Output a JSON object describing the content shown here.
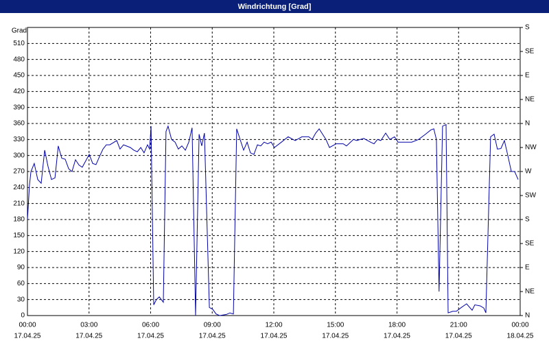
{
  "chart_data": {
    "type": "line",
    "title": "Windrichtung [Grad]",
    "ylabel": "Grad",
    "xlim": [
      0,
      24
    ],
    "xticks": [
      {
        "value": 0,
        "label": "00:00"
      },
      {
        "value": 3,
        "label": "03:00"
      },
      {
        "value": 6,
        "label": "06:00"
      },
      {
        "value": 9,
        "label": "09:00"
      },
      {
        "value": 12,
        "label": "12:00"
      },
      {
        "value": 15,
        "label": "15:00"
      },
      {
        "value": 18,
        "label": "18:00"
      },
      {
        "value": 21,
        "label": "21:00"
      },
      {
        "value": 24,
        "label": "00:00"
      }
    ],
    "xtick_dates": [
      "17.04.25",
      "17.04.25",
      "17.04.25",
      "17.04.25",
      "17.04.25",
      "17.04.25",
      "17.04.25",
      "17.04.25",
      "18.04.25"
    ],
    "ylim": [
      0,
      540
    ],
    "yticks": [
      0,
      30,
      60,
      90,
      120,
      150,
      180,
      210,
      240,
      270,
      300,
      330,
      360,
      390,
      420,
      450,
      480,
      510
    ],
    "y2lim": [
      0,
      540
    ],
    "y2ticks": [
      {
        "value": 0,
        "label": "N"
      },
      {
        "value": 45,
        "label": "NE"
      },
      {
        "value": 90,
        "label": "E"
      },
      {
        "value": 135,
        "label": "SE"
      },
      {
        "value": 180,
        "label": "S"
      },
      {
        "value": 225,
        "label": "SW"
      },
      {
        "value": 270,
        "label": "W"
      },
      {
        "value": 315,
        "label": "NW"
      },
      {
        "value": 360,
        "label": "N"
      },
      {
        "value": 405,
        "label": "NE"
      },
      {
        "value": 450,
        "label": "E"
      },
      {
        "value": 495,
        "label": "SE"
      },
      {
        "value": 540,
        "label": "S"
      }
    ],
    "grid": true,
    "color": "#0000a8",
    "x": [
      0,
      0.1,
      0.17,
      0.33,
      0.5,
      0.67,
      0.84,
      1,
      1.17,
      1.34,
      1.5,
      1.67,
      1.84,
      2.01,
      2.17,
      2.34,
      2.51,
      2.67,
      2.84,
      3.01,
      3.18,
      3.34,
      3.51,
      3.68,
      3.84,
      4.01,
      4.35,
      4.51,
      4.68,
      5.01,
      5.18,
      5.35,
      5.52,
      5.68,
      5.85,
      5.95,
      6.02,
      6.15,
      6.28,
      6.42,
      6.62,
      6.75,
      6.85,
      7.02,
      7.19,
      7.35,
      7.52,
      7.69,
      7.86,
      8.02,
      8.19,
      8.36,
      8.49,
      8.62,
      8.86,
      9.02,
      9.19,
      9.36,
      9.69,
      9.86,
      10.03,
      10.19,
      10.36,
      10.53,
      10.7,
      10.86,
      11.03,
      11.2,
      11.36,
      11.53,
      11.7,
      11.87,
      12.03,
      12.37,
      12.7,
      13.04,
      13.37,
      13.7,
      13.87,
      14.04,
      14.21,
      14.54,
      14.71,
      15.04,
      15.38,
      15.54,
      15.88,
      16.04,
      16.38,
      16.71,
      16.88,
      17.05,
      17.21,
      17.45,
      17.65,
      17.88,
      18.05,
      18.38,
      18.72,
      19.05,
      19.39,
      19.65,
      19.79,
      19.92,
      20.05,
      20.22,
      20.39,
      20.49,
      20.72,
      20.89,
      21.13,
      21.39,
      21.66,
      21.79,
      22.06,
      22.23,
      22.33,
      22.56,
      22.73,
      22.89,
      23.06,
      23.23,
      23.4,
      23.57,
      23.73,
      23.9
    ],
    "values": [
      180,
      245,
      270,
      285,
      255,
      248,
      310,
      280,
      255,
      258,
      318,
      295,
      293,
      275,
      270,
      292,
      282,
      278,
      290,
      302,
      285,
      283,
      298,
      312,
      320,
      320,
      328,
      312,
      320,
      315,
      310,
      307,
      315,
      305,
      320,
      312,
      355,
      20,
      30,
      35,
      25,
      345,
      355,
      330,
      325,
      312,
      318,
      310,
      325,
      352,
      0,
      340,
      318,
      342,
      15,
      12,
      3,
      0,
      2,
      5,
      3,
      350,
      330,
      310,
      325,
      305,
      302,
      320,
      318,
      325,
      322,
      325,
      315,
      325,
      335,
      328,
      335,
      335,
      330,
      342,
      350,
      330,
      315,
      322,
      322,
      318,
      330,
      328,
      332,
      325,
      322,
      330,
      328,
      342,
      330,
      335,
      325,
      325,
      325,
      330,
      340,
      348,
      350,
      330,
      45,
      355,
      358,
      5,
      8,
      8,
      15,
      22,
      10,
      20,
      18,
      14,
      5,
      335,
      340,
      312,
      313,
      328,
      300,
      270,
      270,
      255
    ]
  }
}
